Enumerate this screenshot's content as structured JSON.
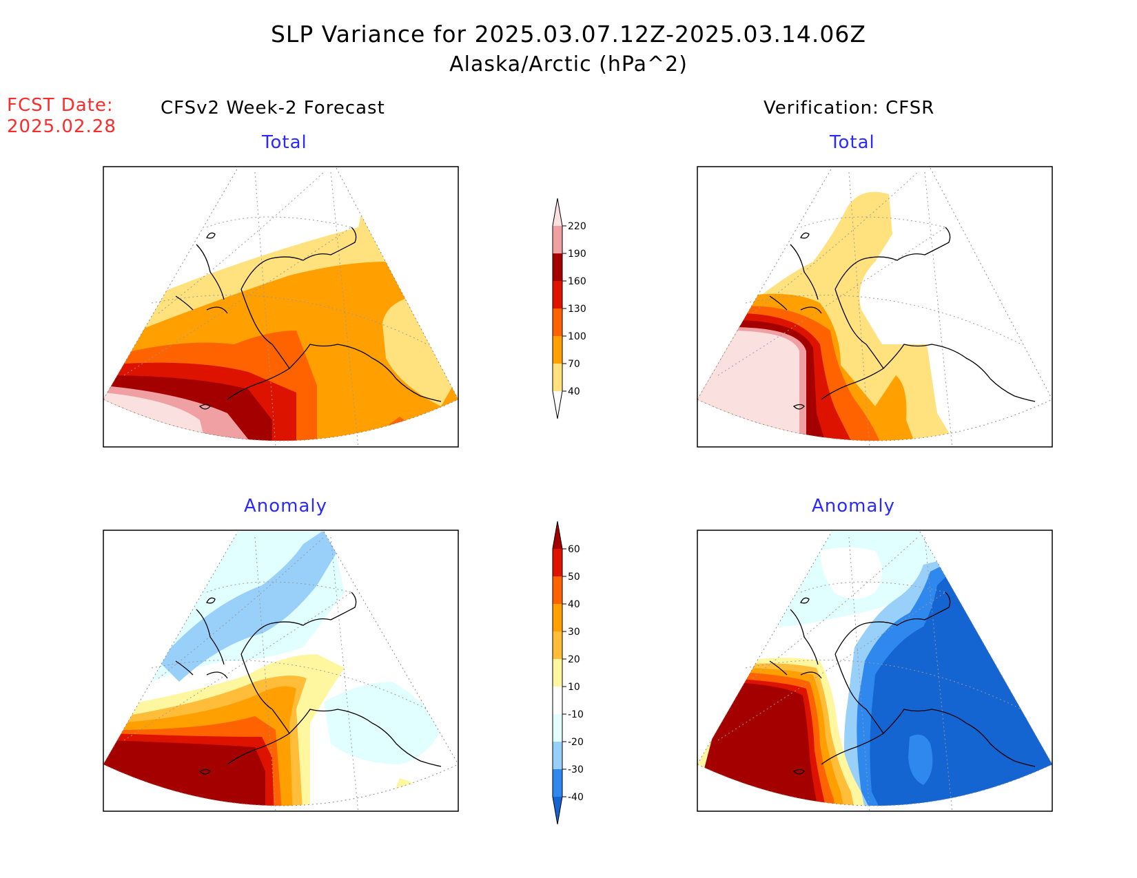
{
  "header": {
    "title": "SLP Variance for 2025.03.07.12Z-2025.03.14.06Z",
    "subtitle": "Alaska/Arctic (hPa^2)",
    "fcst_line1": "FCST Date:",
    "fcst_line2": "2025.02.28"
  },
  "columns": {
    "left": "CFSv2 Week-2 Forecast",
    "right": "Verification: CFSR"
  },
  "panels": {
    "forecast_total": "Total",
    "verification_total": "Total",
    "forecast_anomaly": "Anomaly",
    "verification_anomaly": "Anomaly"
  },
  "legends": {
    "total": {
      "labels": [
        "220",
        "190",
        "160",
        "130",
        "100",
        "70",
        "40"
      ],
      "colors": [
        "#fbe0e0",
        "#f0a0a2",
        "#a50000",
        "#dd1300",
        "#ff6300",
        "#ff9f00",
        "#ffe27e",
        "#ffffff"
      ]
    },
    "anomaly": {
      "labels": [
        "60",
        "50",
        "40",
        "30",
        "20",
        "10",
        "-10",
        "-20",
        "-30",
        "-40"
      ],
      "colors": [
        "#a50000",
        "#dd1300",
        "#ff6300",
        "#ff9f00",
        "#ffbd39",
        "#fff7a0",
        "#ffffff",
        "#e0fffe",
        "#98d0fa",
        "#2f88ee",
        "#1464d2"
      ]
    }
  },
  "palette": {
    "frame": "#000000",
    "title_blue": "#2a2aff",
    "fcst_red": "#ff2a2a"
  }
}
